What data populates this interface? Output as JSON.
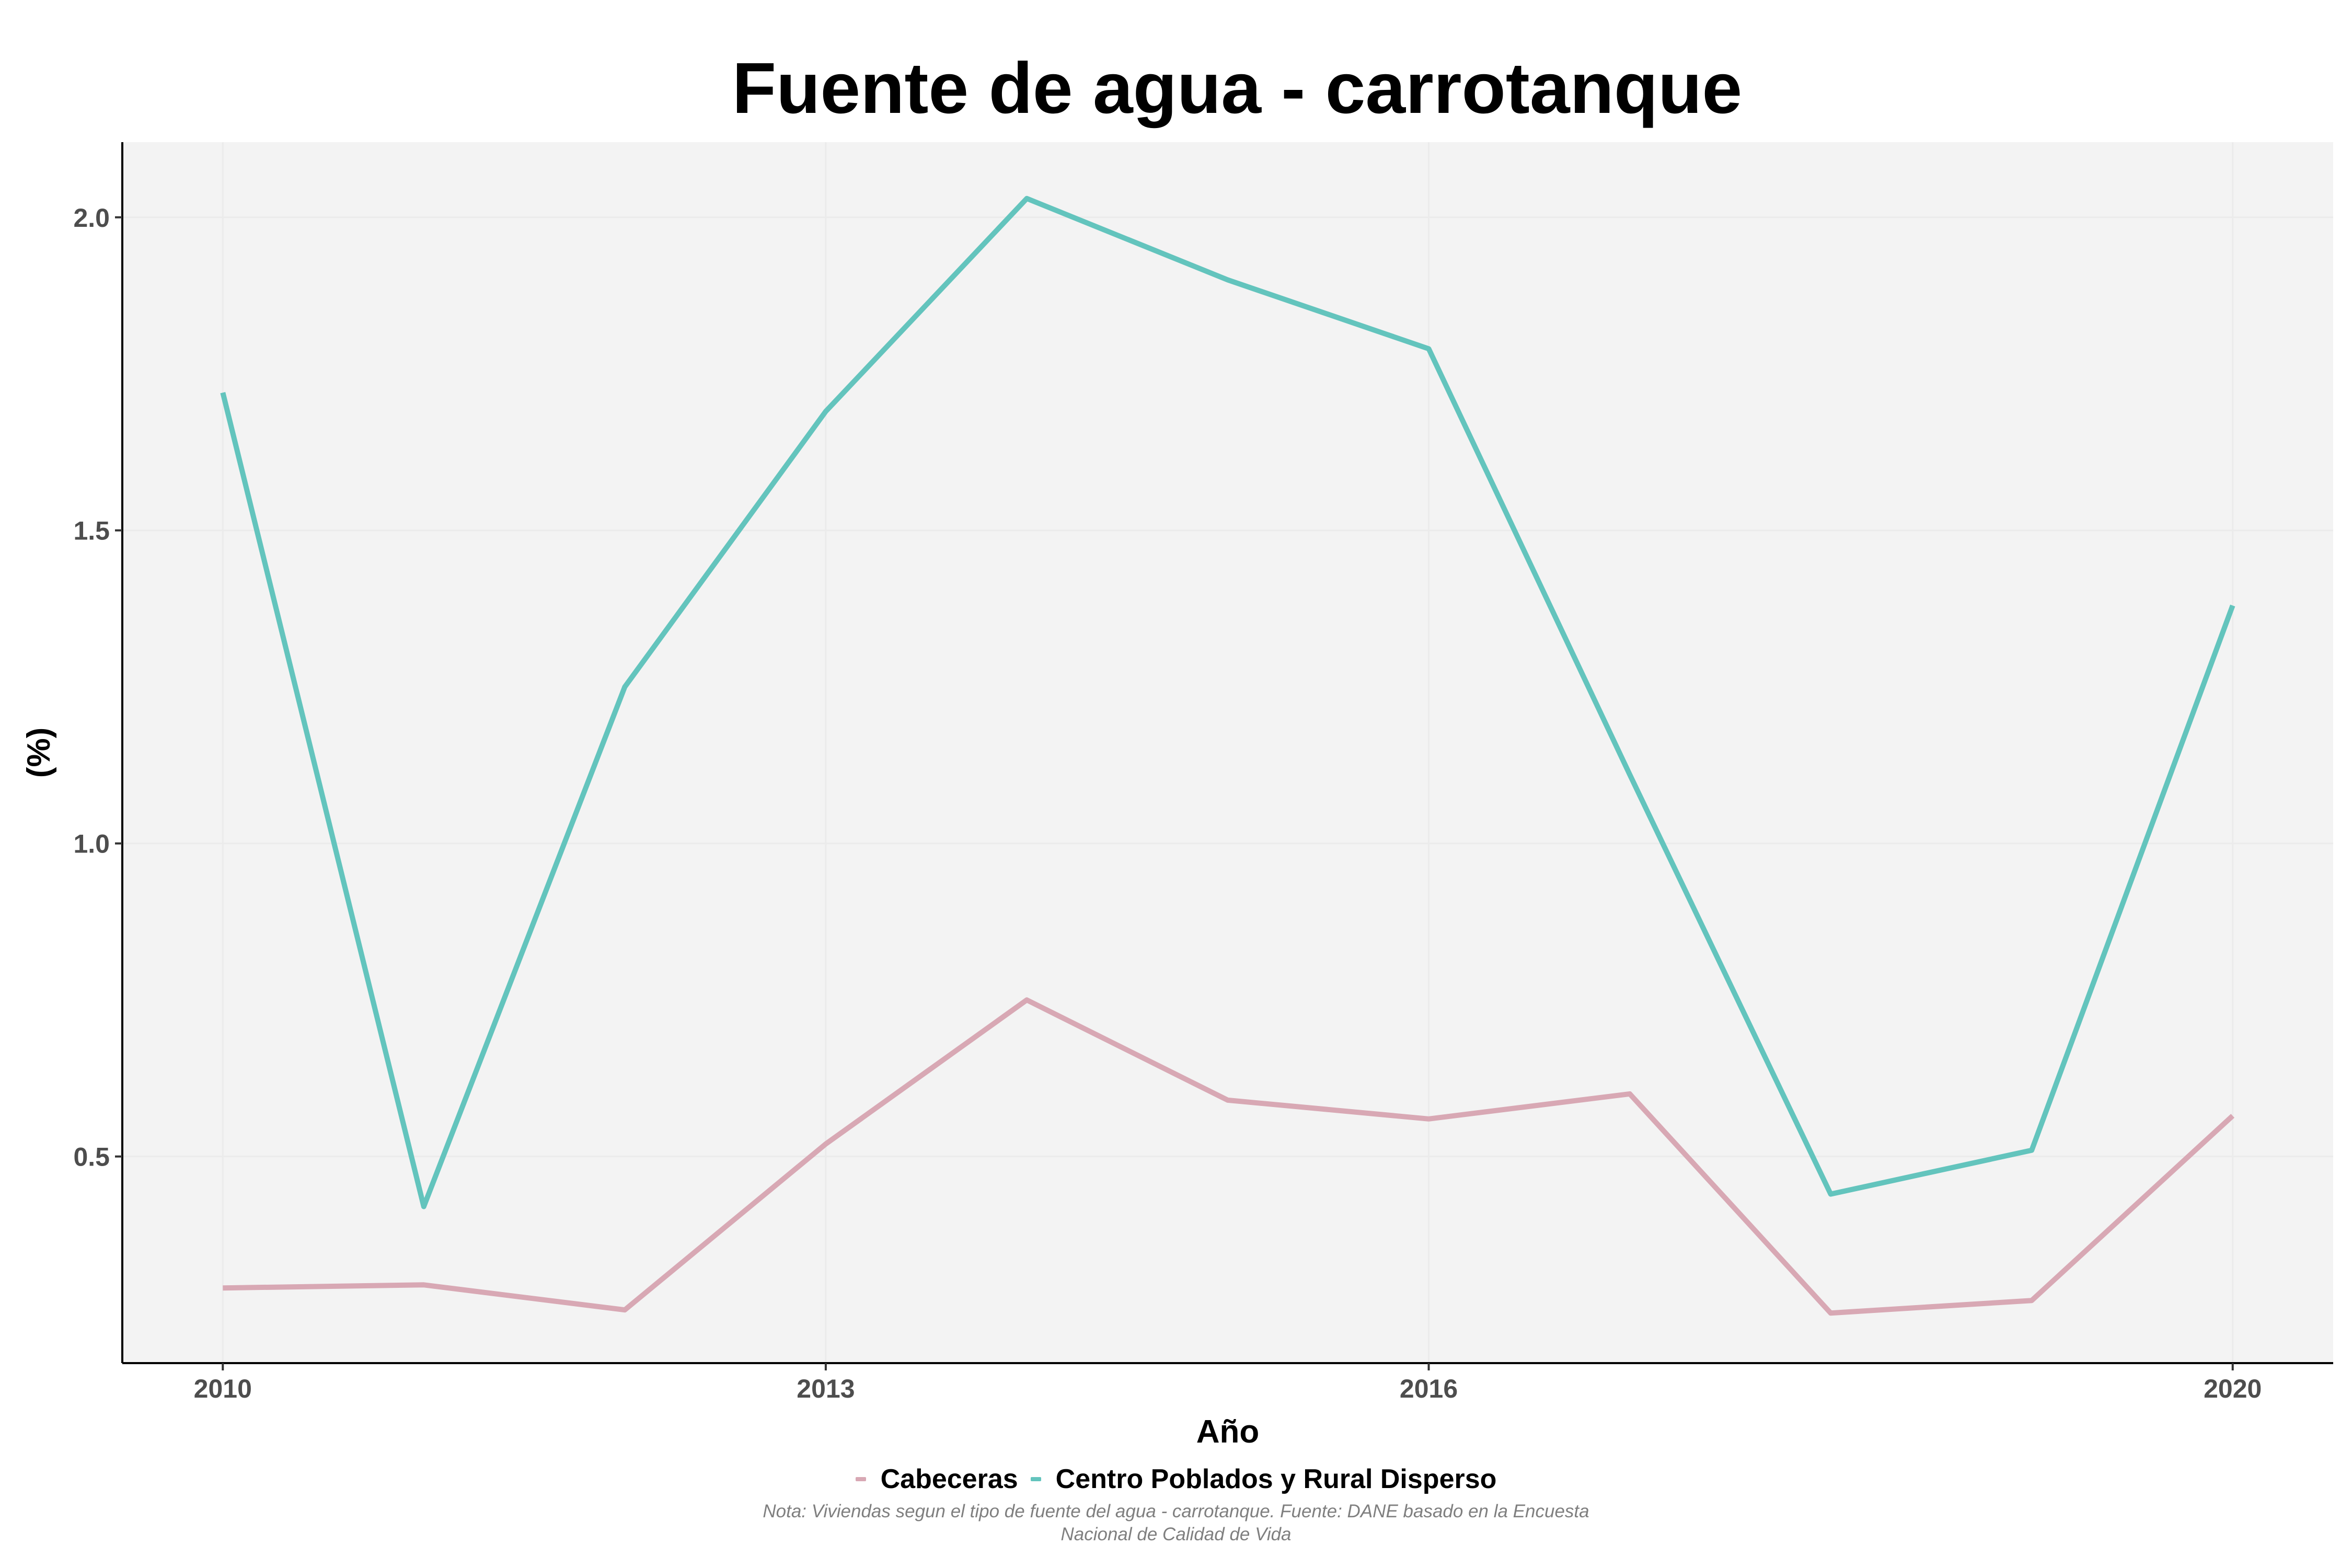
{
  "chart_data": {
    "type": "line",
    "title": "Fuente de agua - carrotanque",
    "xlabel": "Año",
    "ylabel": "(%)",
    "x": [
      2010,
      2011,
      2012,
      2013,
      2014,
      2015,
      2016,
      2017,
      2018,
      2019,
      2020
    ],
    "xlim": [
      2009.5,
      2020.5
    ],
    "ylim": [
      0.17,
      2.12
    ],
    "xticks": [
      2010,
      2013,
      2016,
      2020
    ],
    "yticks": [
      0.5,
      1.0,
      1.5,
      2.0
    ],
    "xtick_labels": [
      "2010",
      "2013",
      "2016",
      "2020"
    ],
    "ytick_labels": [
      "0.5",
      "1.0",
      "1.5",
      "2.0"
    ],
    "grid": true,
    "legend_position": "bottom",
    "series": [
      {
        "name": "Cabeceras",
        "color": "#d8a8b4",
        "values": [
          0.29,
          0.295,
          0.255,
          0.52,
          0.75,
          0.59,
          0.56,
          0.6,
          0.25,
          0.27,
          0.565
        ]
      },
      {
        "name": "Centro Poblados y Rural Disperso",
        "color": "#63c4bd",
        "values": [
          1.72,
          0.42,
          1.25,
          1.69,
          2.03,
          1.9,
          1.79,
          1.11,
          0.44,
          0.51,
          1.38
        ]
      }
    ],
    "caption": [
      "Nota: Viviendas segun el tipo de fuente del agua - carrotanque. Fuente: DANE basado en la Encuesta",
      "Nacional de Calidad de Vida"
    ]
  }
}
